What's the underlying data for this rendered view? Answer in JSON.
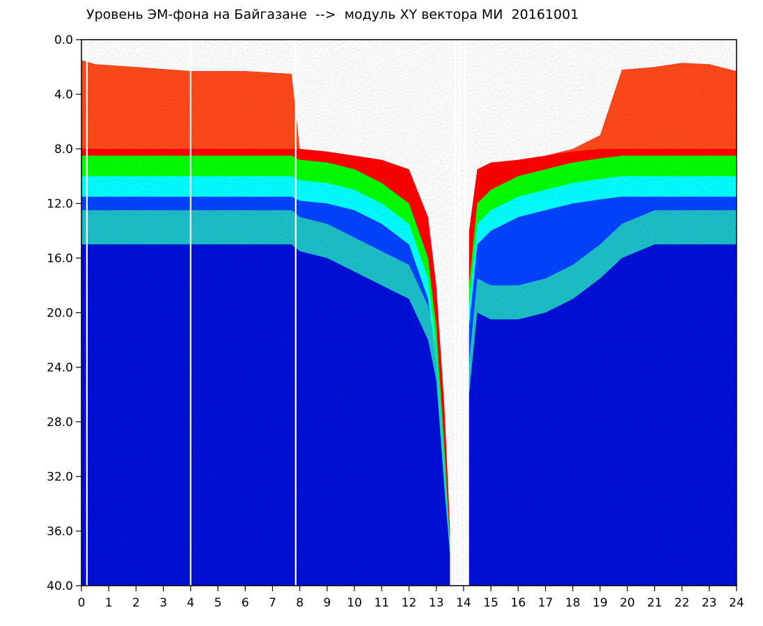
{
  "chart_data": {
    "type": "heatmap",
    "title": "Уровень ЭМ-фона на Байгазане  -->  модуль XY вектора МИ  20161001",
    "xlabel": "",
    "ylabel": "",
    "x_range": [
      0,
      24
    ],
    "y_range": [
      0.0,
      40.0
    ],
    "y_inverted": true,
    "grid": false,
    "x_ticks": [
      "0",
      "1",
      "2",
      "3",
      "4",
      "5",
      "6",
      "7",
      "8",
      "9",
      "10",
      "11",
      "12",
      "13",
      "14",
      "15",
      "16",
      "17",
      "18",
      "19",
      "20",
      "21",
      "22",
      "23",
      "24"
    ],
    "y_ticks": [
      "0.0",
      "4.0",
      "8.0",
      "12.0",
      "16.0",
      "20.0",
      "24.0",
      "28.0",
      "32.0",
      "36.0",
      "40.0"
    ],
    "colormap": [
      "#ffffff",
      "#ff0000",
      "#ffff00",
      "#00ff00",
      "#00ffff",
      "#0044ff",
      "#0010d8"
    ],
    "band_edges": [
      {
        "x": 0.0,
        "noise_top": 1.5,
        "red_top": 8.0,
        "green_top": 8.5,
        "blue_top": 15.0
      },
      {
        "x": 0.5,
        "noise_top": 1.8,
        "red_top": 8.0,
        "green_top": 8.5,
        "blue_top": 15.0
      },
      {
        "x": 2.0,
        "noise_top": 2.0,
        "red_top": 8.0,
        "green_top": 8.5,
        "blue_top": 15.0
      },
      {
        "x": 4.0,
        "noise_top": 2.3,
        "red_top": 8.0,
        "green_top": 8.5,
        "blue_top": 15.0
      },
      {
        "x": 6.0,
        "noise_top": 2.3,
        "red_top": 8.0,
        "green_top": 8.5,
        "blue_top": 15.0
      },
      {
        "x": 7.7,
        "noise_top": 2.5,
        "red_top": 8.0,
        "green_top": 8.5,
        "blue_top": 15.0
      },
      {
        "x": 8.0,
        "noise_top": 8.0,
        "red_top": 8.0,
        "green_top": 8.8,
        "blue_top": 15.5
      },
      {
        "x": 9.0,
        "noise_top": 8.2,
        "red_top": 8.2,
        "green_top": 9.0,
        "blue_top": 16.0
      },
      {
        "x": 10.0,
        "noise_top": 8.5,
        "red_top": 8.5,
        "green_top": 9.5,
        "blue_top": 17.0
      },
      {
        "x": 11.0,
        "noise_top": 8.8,
        "red_top": 8.8,
        "green_top": 10.5,
        "blue_top": 18.0
      },
      {
        "x": 12.0,
        "noise_top": 9.5,
        "red_top": 9.5,
        "green_top": 12.0,
        "blue_top": 19.0
      },
      {
        "x": 12.7,
        "noise_top": 13.0,
        "red_top": 13.0,
        "green_top": 16.0,
        "blue_top": 22.0
      },
      {
        "x": 13.0,
        "noise_top": 18.0,
        "red_top": 18.0,
        "green_top": 21.0,
        "blue_top": 25.0
      },
      {
        "x": 13.3,
        "noise_top": 27.0,
        "red_top": 27.0,
        "green_top": 30.0,
        "blue_top": 33.0
      },
      {
        "x": 13.6,
        "noise_top": 40.0,
        "red_top": 40.0,
        "green_top": 40.0,
        "blue_top": 40.0
      },
      {
        "x": 14.0,
        "noise_top": 40.0,
        "red_top": 40.0,
        "green_top": 40.0,
        "blue_top": 40.0
      },
      {
        "x": 14.2,
        "noise_top": 14.0,
        "red_top": 14.0,
        "green_top": 18.0,
        "blue_top": 26.0
      },
      {
        "x": 14.5,
        "noise_top": 9.5,
        "red_top": 9.5,
        "green_top": 12.0,
        "blue_top": 20.0
      },
      {
        "x": 15.0,
        "noise_top": 9.0,
        "red_top": 9.0,
        "green_top": 11.0,
        "blue_top": 20.5
      },
      {
        "x": 16.0,
        "noise_top": 8.8,
        "red_top": 8.8,
        "green_top": 10.0,
        "blue_top": 20.5
      },
      {
        "x": 17.0,
        "noise_top": 8.5,
        "red_top": 8.5,
        "green_top": 9.5,
        "blue_top": 20.0
      },
      {
        "x": 18.0,
        "noise_top": 8.0,
        "red_top": 8.2,
        "green_top": 9.0,
        "blue_top": 19.0
      },
      {
        "x": 19.0,
        "noise_top": 7.0,
        "red_top": 8.0,
        "green_top": 8.7,
        "blue_top": 17.5
      },
      {
        "x": 19.8,
        "noise_top": 2.2,
        "red_top": 8.0,
        "green_top": 8.5,
        "blue_top": 16.0
      },
      {
        "x": 21.0,
        "noise_top": 2.0,
        "red_top": 8.0,
        "green_top": 8.5,
        "blue_top": 15.0
      },
      {
        "x": 22.0,
        "noise_top": 1.7,
        "red_top": 8.0,
        "green_top": 8.5,
        "blue_top": 15.0
      },
      {
        "x": 23.0,
        "noise_top": 1.8,
        "red_top": 8.0,
        "green_top": 8.5,
        "blue_top": 15.0
      },
      {
        "x": 24.0,
        "noise_top": 2.3,
        "red_top": 8.0,
        "green_top": 8.5,
        "blue_top": 15.0
      }
    ],
    "gaps_x": [
      0.2,
      4.0,
      7.85,
      13.7,
      13.85,
      14.05
    ],
    "white_region": {
      "x_from": 13.5,
      "x_to": 14.2,
      "y_from": 0.0,
      "y_to": 40.0
    }
  }
}
